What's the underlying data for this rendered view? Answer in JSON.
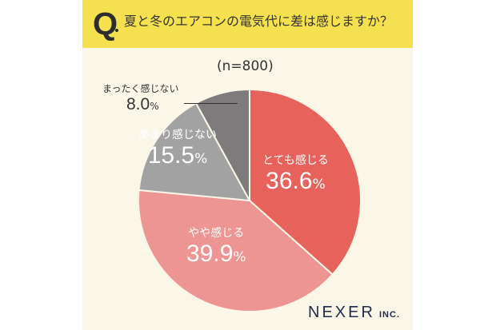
{
  "header": {
    "q_mark": "Q",
    "question": "夏と冬のエアコンの電気代に差は感じますか？"
  },
  "sample": "(n=800)",
  "percent_sign": "%",
  "brand": {
    "name": "NEXER",
    "suffix": "INC."
  },
  "colors": {
    "header_bg": "#f5e04f",
    "card_bg": "#faf6e8",
    "very_much": "#e8625c",
    "somewhat": "#ec9593",
    "not_much": "#a2a2a2",
    "not_at_all": "#7d7b7c"
  },
  "slices": [
    {
      "label": "とても感じる",
      "value": "36.6"
    },
    {
      "label": "やや感じる",
      "value": "39.9"
    },
    {
      "label": "あまり感じない",
      "value": "15.5"
    },
    {
      "label": "まったく感じない",
      "value": "8.0"
    }
  ],
  "chart_data": {
    "type": "pie",
    "title": "夏と冬のエアコンの電気代に差は感じますか？",
    "subtitle": "(n=800)",
    "categories": [
      "とても感じる",
      "やや感じる",
      "あまり感じない",
      "まったく感じない"
    ],
    "values": [
      36.6,
      39.9,
      15.5,
      8.0
    ],
    "unit": "%",
    "start_angle": "12 o'clock, clockwise",
    "legend": "labels inside slices; まったく感じない labeled outside with leader line"
  }
}
